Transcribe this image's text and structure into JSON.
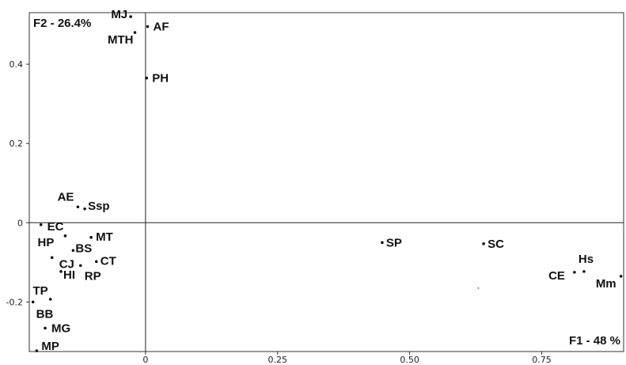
{
  "chart_data": {
    "type": "scatter",
    "title": "",
    "x_axis_title": "F1 - 48 %",
    "y_axis_title": "F2 - 26.4%",
    "xlim": [
      -0.22,
      0.905
    ],
    "ylim": [
      -0.325,
      0.53
    ],
    "x_ticks": [
      {
        "value": 0,
        "label": "0"
      },
      {
        "value": 0.25,
        "label": "0.25"
      },
      {
        "value": 0.5,
        "label": "0.50"
      },
      {
        "value": 0.75,
        "label": "0.75"
      }
    ],
    "y_ticks": [
      {
        "value": 0.4,
        "label": "0.4"
      },
      {
        "value": 0.2,
        "label": "0.2"
      },
      {
        "value": 0,
        "label": "0"
      },
      {
        "value": -0.2,
        "label": "-0.2"
      }
    ],
    "grid": false,
    "points": [
      {
        "label": "MJ",
        "x": -0.028,
        "y": 0.52,
        "anchor": "end",
        "dx": -4,
        "dy": 2
      },
      {
        "label": "MTH",
        "x": -0.02,
        "y": 0.48,
        "anchor": "end",
        "dx": -2,
        "dy": 14
      },
      {
        "label": "AF",
        "x": 0.004,
        "y": 0.495,
        "anchor": "start",
        "dx": 7,
        "dy": 5
      },
      {
        "label": "PH",
        "x": 0.002,
        "y": 0.365,
        "anchor": "start",
        "dx": 7,
        "dy": 5
      },
      {
        "label": "AE",
        "x": -0.128,
        "y": 0.04,
        "anchor": "end",
        "dx": -5,
        "dy": -8
      },
      {
        "label": "Ssp",
        "x": -0.115,
        "y": 0.035,
        "anchor": "start",
        "dx": 4,
        "dy": 1
      },
      {
        "label": "EC",
        "x": -0.198,
        "y": -0.005,
        "anchor": "start",
        "dx": 8,
        "dy": 7
      },
      {
        "label": "MT",
        "x": -0.103,
        "y": -0.037,
        "anchor": "start",
        "dx": 6,
        "dy": 4
      },
      {
        "label": "HP",
        "x": -0.152,
        "y": -0.033,
        "anchor": "end",
        "dx": -14,
        "dy": 13
      },
      {
        "label": "BS",
        "x": -0.137,
        "y": -0.07,
        "anchor": "start",
        "dx": 3,
        "dy": 2
      },
      {
        "label": "CJ",
        "x": -0.177,
        "y": -0.088,
        "anchor": "start",
        "dx": 9,
        "dy": 13
      },
      {
        "label": "CT",
        "x": -0.093,
        "y": -0.098,
        "anchor": "start",
        "dx": 5,
        "dy": 4
      },
      {
        "label": "HI",
        "x": -0.16,
        "y": -0.123,
        "anchor": "start",
        "dx": 3,
        "dy": 9
      },
      {
        "label": "RP",
        "x": -0.123,
        "y": -0.108,
        "anchor": "start",
        "dx": 5,
        "dy": 18
      },
      {
        "label": "TP",
        "x": -0.18,
        "y": -0.193,
        "anchor": "end",
        "dx": -3,
        "dy": -6
      },
      {
        "label": "BB",
        "x": -0.213,
        "y": -0.2,
        "anchor": "start",
        "dx": 4,
        "dy": 20
      },
      {
        "label": "MG",
        "x": -0.19,
        "y": -0.266,
        "anchor": "start",
        "dx": 8,
        "dy": 5
      },
      {
        "label": "MP",
        "x": -0.206,
        "y": -0.323,
        "anchor": "start",
        "dx": 6,
        "dy": -1
      },
      {
        "label": "SP",
        "x": 0.448,
        "y": -0.05,
        "anchor": "start",
        "dx": 5,
        "dy": 5
      },
      {
        "label": "SC",
        "x": 0.64,
        "y": -0.053,
        "anchor": "start",
        "dx": 5,
        "dy": 5
      },
      {
        "label": "Hs",
        "x": 0.83,
        "y": -0.123,
        "anchor": "start",
        "dx": -7,
        "dy": -11
      },
      {
        "label": "CE",
        "x": 0.812,
        "y": -0.125,
        "anchor": "end",
        "dx": -12,
        "dy": 9
      },
      {
        "label": "Mm",
        "x": 0.9,
        "y": -0.135,
        "anchor": "end",
        "dx": -6,
        "dy": 14
      }
    ],
    "stray_dots": [
      {
        "x": 0.63,
        "y": -0.165
      }
    ]
  }
}
